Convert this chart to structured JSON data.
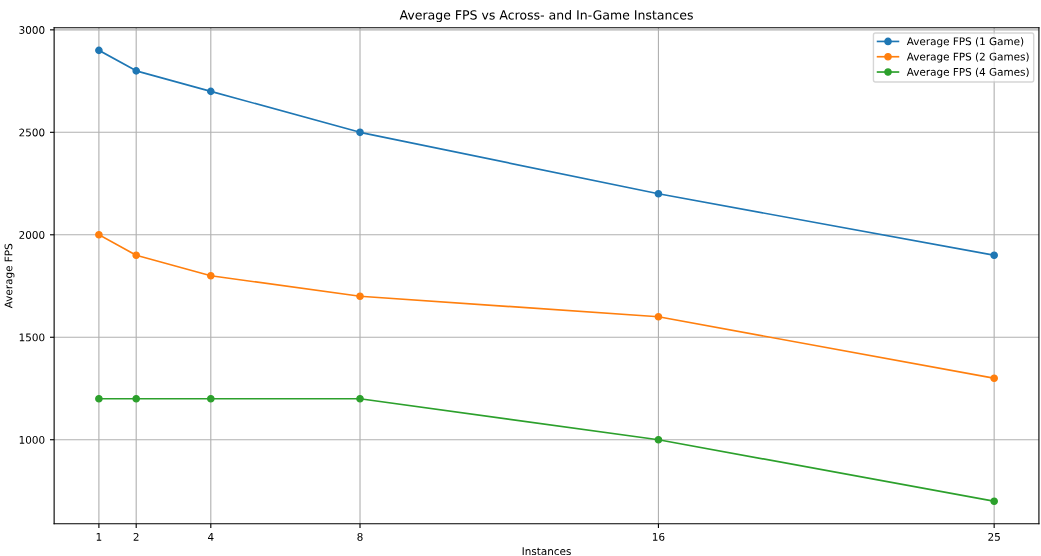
{
  "chart_data": {
    "type": "line",
    "title": "Average FPS vs Across- and In-Game Instances",
    "xlabel": "Instances",
    "ylabel": "Average FPS",
    "x": [
      1,
      2,
      4,
      8,
      16,
      25
    ],
    "series": [
      {
        "name": "Average FPS (1 Game)",
        "color": "#1f77b4",
        "values": [
          2900,
          2800,
          2700,
          2500,
          2200,
          1900
        ]
      },
      {
        "name": "Average FPS (2 Games)",
        "color": "#ff7f0e",
        "values": [
          2000,
          1900,
          1800,
          1700,
          1600,
          1300
        ]
      },
      {
        "name": "Average FPS (4 Games)",
        "color": "#2ca02c",
        "values": [
          1200,
          1200,
          1200,
          1200,
          1000,
          700
        ]
      }
    ],
    "xlim": [
      -0.2,
      26.2
    ],
    "ylim": [
      590,
      3010
    ],
    "xticks": [
      1,
      2,
      4,
      8,
      16,
      25
    ],
    "yticks": [
      1000,
      1500,
      2000,
      2500,
      3000
    ],
    "grid": true,
    "legend": "top right",
    "marker": "circle",
    "line_style": "solid"
  }
}
